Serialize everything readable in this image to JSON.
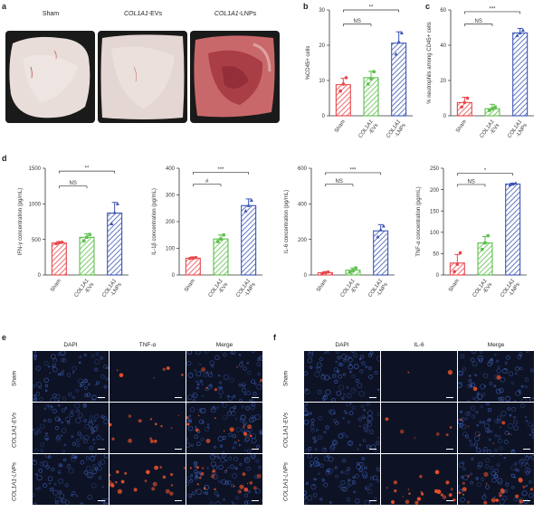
{
  "panel_labels": {
    "a": "a",
    "b": "b",
    "c": "c",
    "d": "d",
    "e": "e",
    "f": "f"
  },
  "panel_a": {
    "labels": [
      "Sham",
      "COL1A1-EVs",
      "COL1A1-LNPs"
    ],
    "label_parts": [
      {
        "italic": "",
        "plain": "Sham"
      },
      {
        "italic": "COL1A1",
        "plain": "-EVs"
      },
      {
        "italic": "COL1A1",
        "plain": "-LNPs"
      }
    ]
  },
  "groups": [
    "Sham",
    "COL1A1-EVs",
    "COL1A1-LNPs"
  ],
  "group_tick_lines": [
    [
      "Sham"
    ],
    [
      "COL1A1",
      "-EVs"
    ],
    [
      "COL1A1",
      "-LNPs"
    ]
  ],
  "colors": {
    "sham": "#e8474c",
    "evs": "#5cbf4a",
    "lnps": "#3c55b4",
    "axis": "#333333"
  },
  "chart_data": [
    {
      "id": "b",
      "type": "bar",
      "ylabel": "%CD45+ cells",
      "ylim": [
        0,
        30
      ],
      "yticks": [
        0,
        10,
        20,
        30
      ],
      "categories": [
        "Sham",
        "COL1A1-EVs",
        "COL1A1-LNPs"
      ],
      "values": [
        8.8,
        10.8,
        20.6
      ],
      "errors": [
        1.8,
        1.8,
        3.2
      ],
      "points": [
        [
          7,
          9,
          10.8
        ],
        [
          9,
          10.5,
          12.5
        ],
        [
          17.5,
          21,
          23.5
        ]
      ],
      "comparisons": [
        {
          "label": "NS",
          "from": 0,
          "to": 1,
          "y": 26
        },
        {
          "label": "**",
          "from": 0,
          "to": 2,
          "y": 30
        }
      ]
    },
    {
      "id": "c",
      "type": "bar",
      "ylabel": "% neutrophils among CD45+ cells",
      "ylim": [
        0,
        60
      ],
      "yticks": [
        0,
        20,
        40,
        60
      ],
      "categories": [
        "Sham",
        "COL1A1-EVs",
        "COL1A1-LNPs"
      ],
      "values": [
        7.5,
        4,
        47
      ],
      "errors": [
        3,
        2.5,
        2.5
      ],
      "points": [
        [
          5,
          7.5,
          10
        ],
        [
          3,
          4,
          5
        ],
        [
          45.5,
          47,
          48.5
        ]
      ],
      "comparisons": [
        {
          "label": "NS",
          "from": 0,
          "to": 1,
          "y": 52
        },
        {
          "label": "***",
          "from": 0,
          "to": 2,
          "y": 59
        }
      ]
    },
    {
      "id": "d1",
      "type": "bar",
      "ylabel": "IFN-γ concentration (pg/mL)",
      "ylim": [
        0,
        1500
      ],
      "yticks": [
        0,
        500,
        1000,
        1500
      ],
      "categories": [
        "Sham",
        "COL1A1-EVs",
        "COL1A1-LNPs"
      ],
      "values": [
        450,
        530,
        870
      ],
      "errors": [
        20,
        50,
        150
      ],
      "points": [
        [
          440,
          455,
          460
        ],
        [
          480,
          530,
          570
        ],
        [
          720,
          880,
          1000
        ]
      ],
      "comparisons": [
        {
          "label": "NS",
          "from": 0,
          "to": 1,
          "y": 1250
        },
        {
          "label": "**",
          "from": 0,
          "to": 2,
          "y": 1460
        }
      ]
    },
    {
      "id": "d2",
      "type": "bar",
      "ylabel": "IL-1β concentration (pg/mL)",
      "ylim": [
        0,
        400
      ],
      "yticks": [
        0,
        100,
        200,
        300,
        400
      ],
      "categories": [
        "Sham",
        "COL1A1-EVs",
        "COL1A1-LNPs"
      ],
      "values": [
        63,
        135,
        260
      ],
      "errors": [
        5,
        15,
        25
      ],
      "points": [
        [
          62,
          63,
          65
        ],
        [
          125,
          135,
          150
        ],
        [
          240,
          260,
          280
        ]
      ],
      "comparisons": [
        {
          "label": "#",
          "from": 0,
          "to": 1,
          "y": 340
        },
        {
          "label": "***",
          "from": 0,
          "to": 2,
          "y": 385
        }
      ]
    },
    {
      "id": "d3",
      "type": "bar",
      "ylabel": "IL-6 concentration (pg/mL)",
      "ylim": [
        0,
        600
      ],
      "yticks": [
        0,
        200,
        400,
        600
      ],
      "categories": [
        "Sham",
        "COL1A1-EVs",
        "COL1A1-LNPs"
      ],
      "values": [
        13,
        27,
        248
      ],
      "errors": [
        5,
        12,
        35
      ],
      "points": [
        [
          8,
          14,
          17
        ],
        [
          15,
          25,
          40
        ],
        [
          215,
          255,
          275
        ]
      ],
      "comparisons": [
        {
          "label": "NS",
          "from": 0,
          "to": 1,
          "y": 510
        },
        {
          "label": "***",
          "from": 0,
          "to": 2,
          "y": 575
        }
      ]
    },
    {
      "id": "d4",
      "type": "bar",
      "ylabel": "TNF-α concentration (pg/mL)",
      "ylim": [
        0,
        250
      ],
      "yticks": [
        0,
        50,
        100,
        150,
        200,
        250
      ],
      "categories": [
        "Sham",
        "COL1A1-EVs",
        "COL1A1-LNPs"
      ],
      "values": [
        28,
        75,
        213
      ],
      "errors": [
        20,
        15,
        2
      ],
      "points": [
        [
          8,
          25,
          52
        ],
        [
          60,
          75,
          92
        ],
        [
          211,
          213,
          215
        ]
      ],
      "comparisons": [
        {
          "label": "NS",
          "from": 0,
          "to": 1,
          "y": 212
        },
        {
          "label": "*",
          "from": 0,
          "to": 2,
          "y": 238
        }
      ]
    }
  ],
  "panel_e": {
    "columns": [
      "DAPI",
      "TNF-α",
      "Merge"
    ],
    "rows": [
      "Sham",
      "COL1A1-EVs",
      "COL1A1-LNPs"
    ]
  },
  "panel_f": {
    "columns": [
      "DAPI",
      "IL-6",
      "Merge"
    ],
    "rows": [
      "Sham",
      "COL1A1-EVs",
      "COL1A1-LNPs"
    ]
  }
}
